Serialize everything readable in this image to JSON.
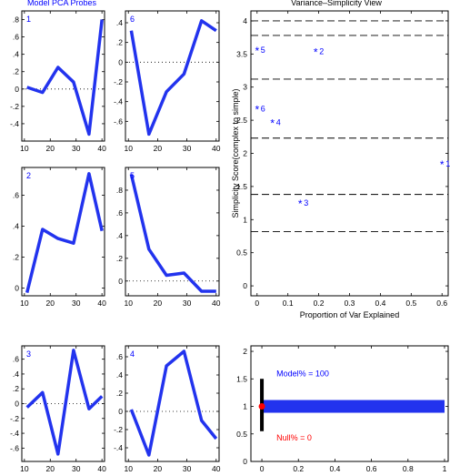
{
  "page": {
    "left_title": "Model PCA Probes",
    "right_title": "Variance–Simplicity View",
    "accent_color": "#0000ff",
    "line_color": "#2233ee",
    "null_color": "#ff0000"
  },
  "chart_data": [
    {
      "type": "line",
      "panel": "probe",
      "label": "1",
      "x": [
        11,
        17,
        23,
        29,
        35,
        40
      ],
      "y": [
        0.02,
        -0.04,
        0.25,
        0.08,
        -0.52,
        0.8
      ],
      "xlim": [
        9,
        41
      ],
      "ylim": [
        -0.6,
        0.9
      ],
      "xticks": [
        10,
        20,
        30,
        40
      ],
      "yticks": [
        -0.4,
        -0.2,
        0,
        0.2,
        0.4,
        0.6,
        0.8
      ],
      "zero_line": true
    },
    {
      "type": "line",
      "panel": "probe",
      "label": "6",
      "x": [
        11,
        17,
        23,
        29,
        35,
        40
      ],
      "y": [
        0.32,
        -0.73,
        -0.3,
        -0.12,
        0.42,
        0.32
      ],
      "xlim": [
        9,
        41
      ],
      "ylim": [
        -0.8,
        0.52
      ],
      "xticks": [
        10,
        20,
        30,
        40
      ],
      "yticks": [
        -0.6,
        -0.4,
        -0.2,
        0,
        0.2,
        0.4
      ],
      "zero_line": true
    },
    {
      "type": "line",
      "panel": "probe",
      "label": "2",
      "x": [
        11,
        17,
        23,
        29,
        35,
        40
      ],
      "y": [
        -0.03,
        0.38,
        0.32,
        0.29,
        0.74,
        0.37
      ],
      "xlim": [
        9,
        41
      ],
      "ylim": [
        -0.05,
        0.78
      ],
      "xticks": [
        10,
        20,
        30,
        40
      ],
      "yticks": [
        0,
        0.2,
        0.4,
        0.6
      ],
      "zero_line": false
    },
    {
      "type": "line",
      "panel": "probe",
      "label": "5",
      "x": [
        11,
        17,
        23,
        29,
        35,
        40
      ],
      "y": [
        0.94,
        0.28,
        0.05,
        0.07,
        -0.09,
        -0.09
      ],
      "xlim": [
        9,
        41
      ],
      "ylim": [
        -0.13,
        1.0
      ],
      "xticks": [
        10,
        20,
        30,
        40
      ],
      "yticks": [
        0,
        0.2,
        0.4,
        0.6,
        0.8
      ],
      "zero_line": true
    },
    {
      "type": "line",
      "panel": "probe",
      "label": "3",
      "x": [
        11,
        17,
        23,
        29,
        35,
        40
      ],
      "y": [
        -0.05,
        0.15,
        -0.68,
        0.72,
        -0.07,
        0.1
      ],
      "xlim": [
        9,
        41
      ],
      "ylim": [
        -0.78,
        0.78
      ],
      "xticks": [
        10,
        20,
        30,
        40
      ],
      "yticks": [
        -0.6,
        -0.4,
        -0.2,
        0,
        0.2,
        0.4,
        0.6
      ],
      "zero_line": true
    },
    {
      "type": "line",
      "panel": "probe",
      "label": "4",
      "x": [
        11,
        17,
        23,
        29,
        35,
        40
      ],
      "y": [
        0.02,
        -0.48,
        0.5,
        0.66,
        -0.1,
        -0.3
      ],
      "xlim": [
        9,
        41
      ],
      "ylim": [
        -0.55,
        0.72
      ],
      "xticks": [
        10,
        20,
        30,
        40
      ],
      "yticks": [
        -0.4,
        -0.2,
        0,
        0.2,
        0.4,
        0.6
      ],
      "zero_line": true
    },
    {
      "type": "scatter",
      "panel": "variance",
      "title": "Variance–Simplicity View",
      "xlabel": "Proportion of Var Explained",
      "ylabel": "Simplicity Score(complex to simple)",
      "xlim": [
        -0.02,
        0.62
      ],
      "ylim": [
        -0.15,
        4.15
      ],
      "xticks": [
        0,
        0.1,
        0.2,
        0.3,
        0.4,
        0.5,
        0.6
      ],
      "yticks": [
        0,
        0.5,
        1,
        1.5,
        2,
        2.5,
        3,
        3.5,
        4
      ],
      "dashed_lines": [
        0.82,
        1.38,
        2.23,
        3.12,
        3.78,
        4.0
      ],
      "points": [
        {
          "label": "1",
          "x": 0.6,
          "y": 1.84
        },
        {
          "label": "2",
          "x": 0.19,
          "y": 3.54
        },
        {
          "label": "3",
          "x": 0.14,
          "y": 1.25
        },
        {
          "label": "4",
          "x": 0.05,
          "y": 2.47
        },
        {
          "label": "5",
          "x": 0.0,
          "y": 3.56
        },
        {
          "label": "6",
          "x": 0.0,
          "y": 2.67
        }
      ]
    },
    {
      "type": "bar",
      "panel": "model_null",
      "xlim": [
        -0.06,
        1.02
      ],
      "ylim": [
        0,
        2.1
      ],
      "xticks": [
        0,
        0.2,
        0.4,
        0.6,
        0.8,
        1
      ],
      "yticks": [
        0,
        0.5,
        1,
        1.5,
        2
      ],
      "model_label": "Model% = 100",
      "null_label": "Null% = 0",
      "model_value": 1.0,
      "null_value": 0.0,
      "bar_y": 1.0,
      "errorbar": [
        0.55,
        1.5
      ]
    }
  ]
}
